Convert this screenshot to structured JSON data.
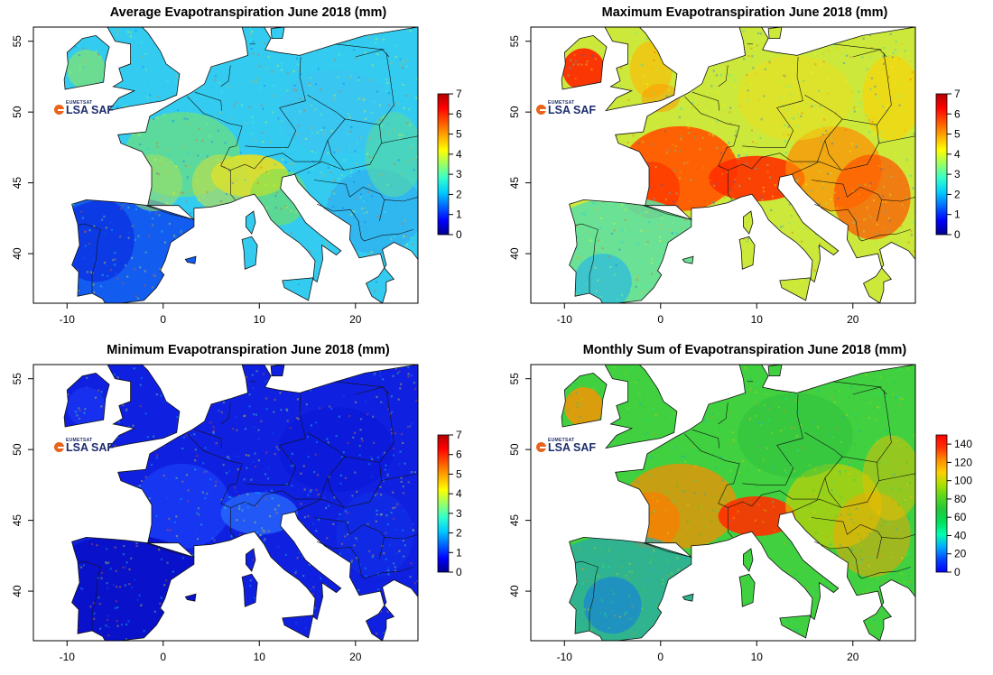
{
  "colors": {
    "sea": "#ffffff",
    "frame": "#000000",
    "border": "#111111",
    "brand_orange": "#e8641b",
    "brand_navy": "#1d2c6b"
  },
  "logo": {
    "org": "EUMETSAT",
    "name": "LSA SAF"
  },
  "panels": [
    {
      "id": "average",
      "title": "Average Evapotranspiration June 2018 (mm)",
      "palette": "average",
      "x_ticks": [
        "-10",
        "0",
        "10",
        "20"
      ],
      "y_ticks": [
        "40",
        "45",
        "50",
        "55"
      ],
      "colorbar": {
        "ticks": [
          "0",
          "1",
          "2",
          "3",
          "4",
          "5",
          "6",
          "7"
        ],
        "min": 0,
        "max": 7
      }
    },
    {
      "id": "maximum",
      "title": "Maximum Evapotranspiration June 2018 (mm)",
      "palette": "maximum",
      "x_ticks": [
        "-10",
        "0",
        "10",
        "20"
      ],
      "y_ticks": [
        "40",
        "45",
        "50",
        "55"
      ],
      "colorbar": {
        "ticks": [
          "0",
          "1",
          "2",
          "3",
          "4",
          "5",
          "6",
          "7"
        ],
        "min": 0,
        "max": 7
      }
    },
    {
      "id": "minimum",
      "title": "Minimum Evapotranspiration June 2018 (mm)",
      "palette": "minimum",
      "x_ticks": [
        "-10",
        "0",
        "10",
        "20"
      ],
      "y_ticks": [
        "40",
        "45",
        "50",
        "55"
      ],
      "colorbar": {
        "ticks": [
          "0",
          "1",
          "2",
          "3",
          "4",
          "5",
          "6",
          "7"
        ],
        "min": 0,
        "max": 7
      }
    },
    {
      "id": "monthly-sum",
      "title": "Monthly Sum of Evapotranspiration June 2018 (mm)",
      "palette": "sum",
      "x_ticks": [
        "-10",
        "0",
        "10",
        "20"
      ],
      "y_ticks": [
        "40",
        "45",
        "50",
        "55"
      ],
      "colorbar": {
        "ticks": [
          "0",
          "20",
          "40",
          "60",
          "80",
          "100",
          "120",
          "140"
        ],
        "min": 0,
        "max": 150
      }
    }
  ]
}
